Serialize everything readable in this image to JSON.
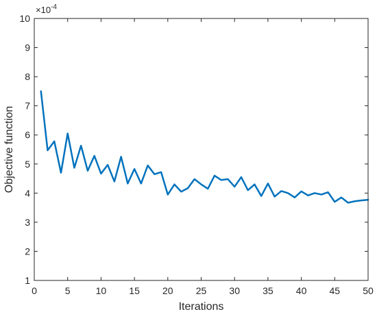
{
  "chart_data": {
    "type": "line",
    "xlabel": "Iterations",
    "ylabel": "Objective function",
    "y_exponent_label": "×10",
    "y_exponent_power": "-4",
    "xlim": [
      0,
      50
    ],
    "ylim": [
      1,
      10
    ],
    "x_ticks": [
      "0",
      "5",
      "10",
      "15",
      "20",
      "25",
      "30",
      "35",
      "40",
      "45",
      "50"
    ],
    "y_ticks": [
      "1",
      "2",
      "3",
      "4",
      "5",
      "6",
      "7",
      "8",
      "9",
      "10"
    ],
    "grid": false,
    "legend": "none",
    "series": [
      {
        "color": "#0072bd",
        "x": [
          1,
          2,
          3,
          4,
          5,
          6,
          7,
          8,
          9,
          10,
          11,
          12,
          13,
          14,
          15,
          16,
          17,
          18,
          19,
          20,
          21,
          22,
          23,
          24,
          25,
          26,
          27,
          28,
          29,
          30,
          31,
          32,
          33,
          34,
          35,
          36,
          37,
          38,
          39,
          40,
          41,
          42,
          43,
          44,
          45,
          46,
          47,
          48,
          49,
          50
        ],
        "y": [
          7.5,
          5.47,
          5.78,
          4.7,
          6.05,
          4.87,
          5.63,
          4.77,
          5.28,
          4.67,
          4.97,
          4.4,
          5.25,
          4.33,
          4.83,
          4.33,
          4.95,
          4.65,
          4.72,
          3.95,
          4.3,
          4.05,
          4.17,
          4.48,
          4.3,
          4.15,
          4.6,
          4.45,
          4.48,
          4.22,
          4.55,
          4.1,
          4.3,
          3.9,
          4.33,
          3.88,
          4.07,
          4.0,
          3.85,
          4.06,
          3.92,
          4.0,
          3.95,
          4.03,
          3.7,
          3.85,
          3.67,
          3.72,
          3.75,
          3.77
        ]
      }
    ]
  }
}
